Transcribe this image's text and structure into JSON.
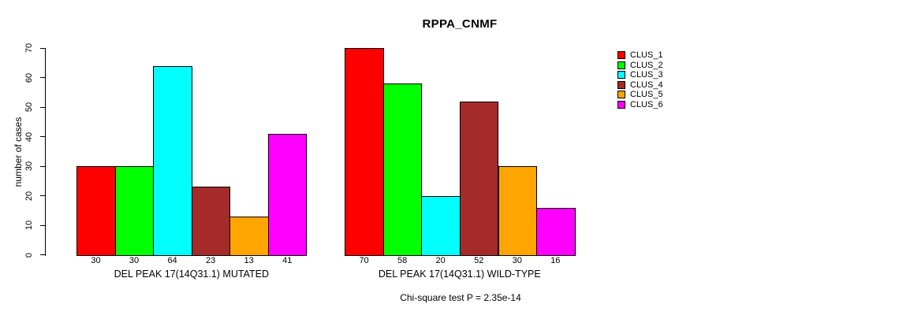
{
  "chart_data": {
    "type": "bar",
    "title": "RPPA_CNMF",
    "ylabel": "number of cases",
    "xlabel": "",
    "ylim": [
      0,
      70
    ],
    "yticks": [
      0,
      10,
      20,
      30,
      40,
      50,
      60,
      70
    ],
    "grid": false,
    "legend_position": "top-right",
    "categories": [
      "DEL PEAK 17(14Q31.1) MUTATED",
      "DEL PEAK 17(14Q31.1) WILD-TYPE"
    ],
    "series": [
      {
        "name": "CLUS_1",
        "color": "#FF0000",
        "values": [
          30,
          70
        ]
      },
      {
        "name": "CLUS_2",
        "color": "#00FF00",
        "values": [
          30,
          58
        ]
      },
      {
        "name": "CLUS_3",
        "color": "#00FFFF",
        "values": [
          64,
          20
        ]
      },
      {
        "name": "CLUS_4",
        "color": "#A52A2A",
        "values": [
          23,
          52
        ]
      },
      {
        "name": "CLUS_5",
        "color": "#FFA500",
        "values": [
          13,
          30
        ]
      },
      {
        "name": "CLUS_6",
        "color": "#FF00FF",
        "values": [
          41,
          16
        ]
      }
    ],
    "bar_value_labels": [
      [
        30,
        30,
        64,
        23,
        13,
        41
      ],
      [
        70,
        58,
        20,
        52,
        30,
        16
      ]
    ],
    "footnote": "Chi-square test P = 2.35e-14",
    "axis_color": "#000000",
    "background_color": "#FFFFFF"
  }
}
